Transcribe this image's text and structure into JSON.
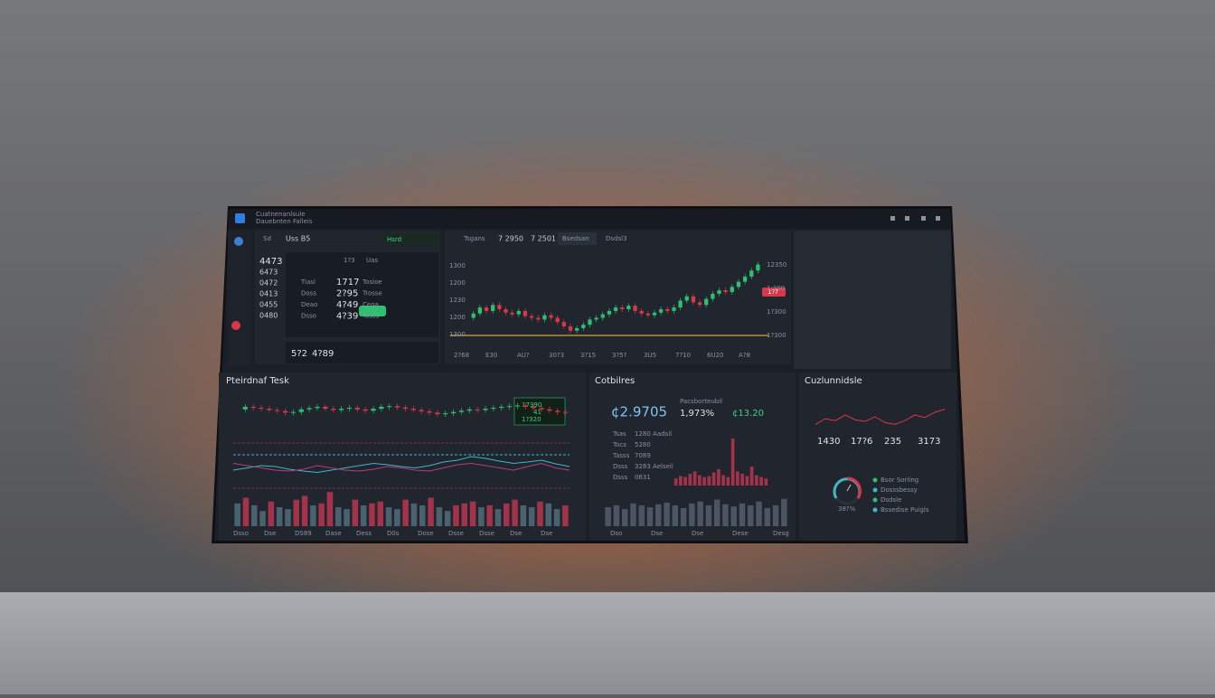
{
  "window": {
    "title": "Cuatnenanlsule",
    "subtitle": "Dauebnten Falleis"
  },
  "watchlist": {
    "tab": "Sd",
    "symbol": "Uss B5",
    "status": "Hsrd",
    "side_values": [
      "4473",
      "6473",
      "0472",
      "0413",
      "0455",
      "0480"
    ],
    "columns": [
      "1?3",
      "Uas"
    ],
    "rows": [
      [
        "Tiasl",
        "1717",
        "Tosioe"
      ],
      [
        "Doss",
        "2?95",
        "Trosse"
      ],
      [
        "Deao",
        "4?49",
        "Ceoa"
      ],
      [
        "Dsso",
        "4?39",
        "Tosss"
      ]
    ],
    "footer": [
      "5?2",
      "4?89"
    ]
  },
  "toolbar": [
    "Tsgans",
    "7 2950",
    "7 2501",
    "Bsedsan",
    "Dsdsl3"
  ],
  "main_chart": {
    "type": "candlestick",
    "values": [
      30,
      35,
      42,
      38,
      45,
      40,
      36,
      34,
      38,
      32,
      30,
      28,
      33,
      30,
      25,
      20,
      15,
      18,
      22,
      28,
      30,
      34,
      38,
      42,
      40,
      44,
      38,
      35,
      33,
      36,
      40,
      38,
      42,
      50,
      55,
      48,
      45,
      52,
      58,
      62,
      60,
      66,
      72,
      78,
      85,
      92
    ],
    "ylim": [
      0,
      100
    ],
    "up_color": "#2fbf71",
    "down_color": "#d8384a",
    "left_labels": [
      "1300",
      "1200",
      "1230",
      "1200",
      "1300"
    ],
    "right_labels": [
      "12350",
      "1:300",
      "1?300",
      "1?300"
    ],
    "price_tag": "1??",
    "x_labels": [
      "2?68",
      "E30",
      "AU?",
      "30?3",
      "3?15",
      "3?5?",
      "3U5",
      "7?10",
      "6U20",
      "A?8"
    ]
  },
  "technical_panel": {
    "title": "Pteirdnaf Tesk",
    "badge": [
      "17390",
      "41",
      "1?320"
    ],
    "candles": {
      "type": "candlestick",
      "values": [
        70,
        78,
        75,
        72,
        68,
        65,
        60,
        62,
        70,
        74,
        78,
        72,
        68,
        72,
        75,
        70,
        66,
        72,
        78,
        80,
        76,
        72,
        68,
        64,
        60,
        55,
        58,
        62,
        66,
        70,
        68,
        72,
        75,
        78,
        80,
        82,
        78,
        74,
        70,
        66,
        62,
        60
      ],
      "ylim": [
        0,
        100
      ]
    },
    "oscillator": {
      "type": "line",
      "ylim": [
        0,
        100
      ],
      "series": [
        {
          "color": "#3fb7c9",
          "values": [
            40,
            45,
            50,
            48,
            42,
            38,
            35,
            40,
            45,
            50,
            55,
            52,
            48,
            45,
            50,
            58,
            62,
            70,
            66,
            60,
            55,
            58,
            62,
            54,
            48
          ]
        },
        {
          "color": "#b0407e",
          "values": [
            55,
            50,
            45,
            40,
            38,
            42,
            50,
            45,
            40,
            38,
            42,
            48,
            45,
            40,
            38,
            45,
            52,
            55,
            50,
            45,
            40,
            48,
            55,
            45,
            40
          ]
        }
      ]
    },
    "volume": {
      "type": "bar",
      "ylim": [
        0,
        100
      ],
      "values": [
        60,
        75,
        55,
        40,
        65,
        50,
        45,
        70,
        80,
        55,
        60,
        90,
        50,
        45,
        70,
        55,
        60,
        65,
        50,
        45,
        70,
        60,
        55,
        75,
        50,
        40,
        55,
        60,
        65,
        50,
        55,
        45,
        60,
        70,
        55,
        50,
        65,
        60,
        45,
        55
      ]
    },
    "x_labels": [
      "Dsso",
      "Dse",
      "DS89",
      "Dase",
      "Dess",
      "D0s",
      "Dose",
      "Dsse",
      "Dsse",
      "Dse",
      "Dse"
    ]
  },
  "summary_panel": {
    "title": "Cotbilres",
    "big_value": "¢2.9705",
    "change_label": "Pacsborteubil",
    "change": "1,973%",
    "delta": "¢13.20",
    "rows": [
      [
        "Tsas",
        "1280 Aadsil"
      ],
      [
        "Tocs",
        "5280"
      ],
      [
        "Tasss",
        "7089"
      ],
      [
        "Dsss",
        "3283 Aelseil"
      ],
      [
        "Dsss",
        "0631"
      ]
    ],
    "red_bars": {
      "type": "bar",
      "ylim": [
        0,
        100
      ],
      "values": [
        15,
        20,
        18,
        25,
        30,
        22,
        18,
        20,
        28,
        35,
        22,
        18,
        100,
        30,
        25,
        20,
        40,
        22,
        18,
        15
      ]
    },
    "gray_bars": {
      "type": "bar",
      "ylim": [
        0,
        100
      ],
      "values": [
        50,
        55,
        45,
        60,
        55,
        50,
        58,
        62,
        55,
        48,
        60,
        65,
        55,
        70,
        58,
        52,
        60,
        55,
        65,
        48,
        55,
        72
      ]
    },
    "x_labels": [
      "Dso",
      "Dse",
      "Dse",
      "Dese",
      "Desg"
    ]
  },
  "custom_panel": {
    "title": "Cuzlunnidsle",
    "trend": {
      "type": "line",
      "ylim": [
        0,
        100
      ],
      "color": "#d8384a",
      "values": [
        30,
        45,
        40,
        55,
        42,
        38,
        50,
        35,
        30,
        40,
        55,
        48,
        62,
        70
      ]
    },
    "stats": [
      "1430",
      "17?6",
      "235",
      "3173"
    ],
    "gauge_label": "38?%",
    "legend": [
      "Bsor Sorling",
      "Dosssbessy",
      "Dsdsle",
      "Bssedise Puigls"
    ]
  }
}
